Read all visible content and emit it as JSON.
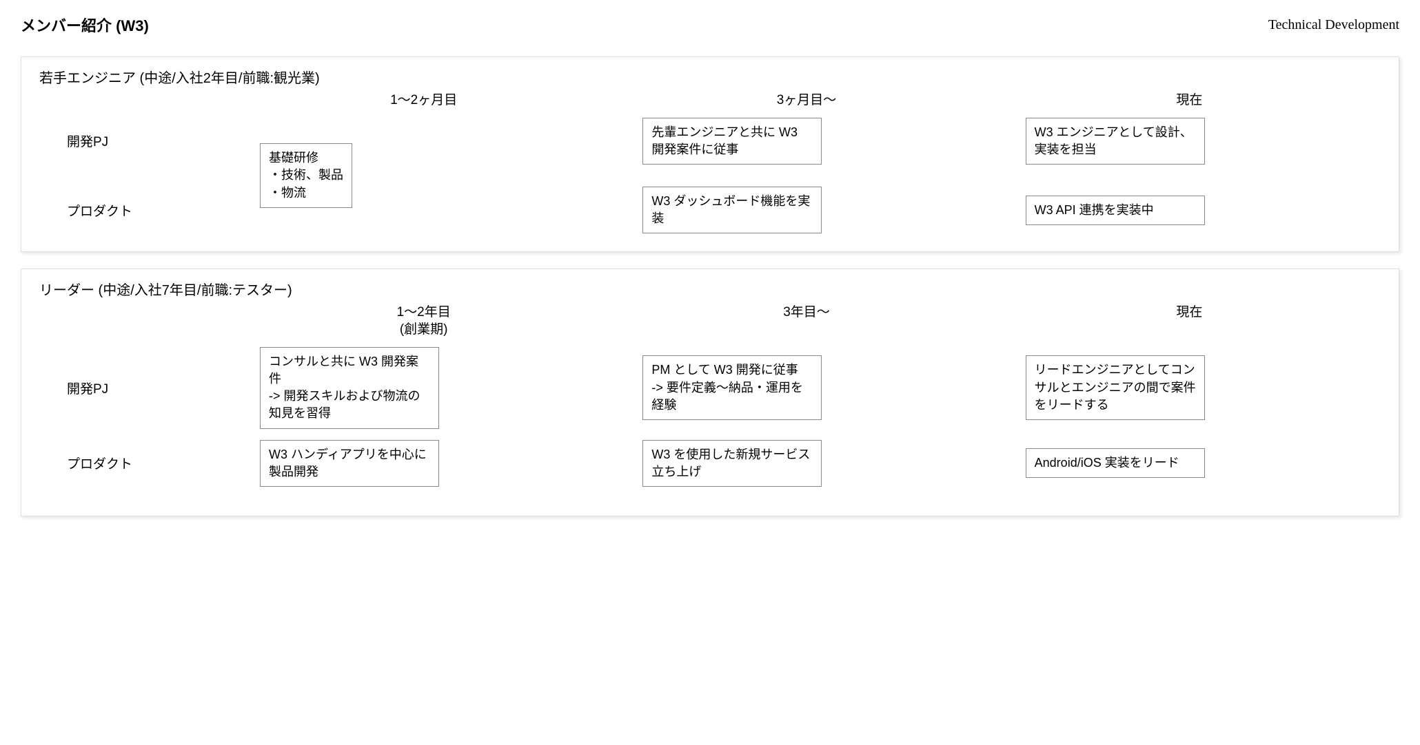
{
  "header": {
    "title": "メンバー紹介 (W3)",
    "right_label": "Technical Development"
  },
  "styling": {
    "bg_color": "#ffffff",
    "panel_border_color": "#e0e0e0",
    "cell_border_color": "#888888",
    "text_color": "#000000",
    "title_fontsize": 22,
    "body_fontsize": 18,
    "panel_shadow": "2px 2px 5px rgba(0,0,0,0.12)"
  },
  "panels": [
    {
      "title": "若手エンジニア (中途/入社2年目/前職:観光業)",
      "timeline": [
        "1〜2ヶ月目",
        "3ヶ月目〜",
        "現在"
      ],
      "rows": [
        {
          "label": "開発PJ"
        },
        {
          "label": "プロダクト"
        }
      ],
      "merged_col0": "基礎研修\n・技術、製品\n・物流",
      "grid": {
        "row0": {
          "col1": "先輩エンジニアと共に W3 開発案件に従事",
          "col2": "W3 エンジニアとして設計、実装を担当"
        },
        "row1": {
          "col1": "W3 ダッシュボード機能を実装",
          "col2": "W3 API 連携を実装中"
        }
      }
    },
    {
      "title": "リーダー (中途/入社7年目/前職:テスター)",
      "timeline": [
        "1〜2年目\n(創業期)",
        "3年目〜",
        "現在"
      ],
      "rows": [
        {
          "label": "開発PJ"
        },
        {
          "label": "プロダクト"
        }
      ],
      "grid": {
        "row0": {
          "col0": "コンサルと共に W3 開発案件\n-> 開発スキルおよび物流の知見を習得",
          "col1": "PM として W3 開発に従事\n-> 要件定義〜納品・運用を経験",
          "col2": "リードエンジニアとしてコンサルとエンジニアの間で案件をリードする"
        },
        "row1": {
          "col0": "W3  ハンディアプリを中心に製品開発",
          "col1": "W3 を使用した新規サービス立ち上げ",
          "col2": "Android/iOS 実装をリード"
        }
      }
    }
  ]
}
